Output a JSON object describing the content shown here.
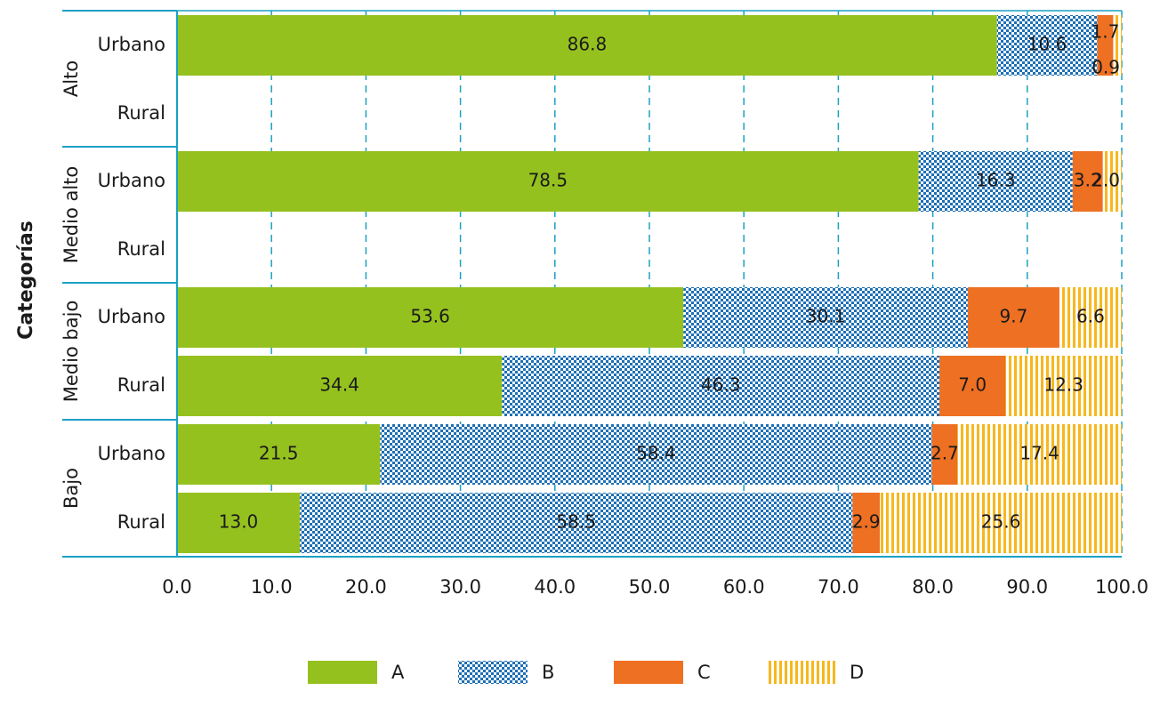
{
  "chart_data": {
    "type": "bar",
    "orientation": "horizontal",
    "stacked": true,
    "ylabel": "Categorías",
    "groups": [
      {
        "name": "Alto",
        "rows": [
          {
            "label": "Urbano",
            "values": [
              86.8,
              10.6,
              1.7,
              0.9
            ]
          },
          {
            "label": "Rural",
            "values": null
          }
        ]
      },
      {
        "name": "Medio alto",
        "rows": [
          {
            "label": "Urbano",
            "values": [
              78.5,
              16.3,
              3.2,
              2.0
            ]
          },
          {
            "label": "Rural",
            "values": null
          }
        ]
      },
      {
        "name": "Medio bajo",
        "rows": [
          {
            "label": "Urbano",
            "values": [
              53.6,
              30.1,
              9.7,
              6.6
            ]
          },
          {
            "label": "Rural",
            "values": [
              34.4,
              46.3,
              7.0,
              12.3
            ]
          }
        ]
      },
      {
        "name": "Bajo",
        "rows": [
          {
            "label": "Urbano",
            "values": [
              21.5,
              58.4,
              2.7,
              17.4
            ]
          },
          {
            "label": "Rural",
            "values": [
              13.0,
              58.5,
              2.9,
              25.6
            ]
          }
        ]
      }
    ],
    "series": [
      {
        "name": "A",
        "color": "#95c11f",
        "pattern": "solid"
      },
      {
        "name": "B",
        "color": "#1e6fb4",
        "pattern": "checker"
      },
      {
        "name": "C",
        "color": "#ee7023",
        "pattern": "solid"
      },
      {
        "name": "D",
        "color": "#f7b71d",
        "pattern": "vertical-stripes"
      }
    ],
    "xlim": [
      0,
      100
    ],
    "xticks": [
      "0.0",
      "10.0",
      "20.0",
      "30.0",
      "40.0",
      "50.0",
      "60.0",
      "70.0",
      "80.0",
      "90.0",
      "100.0"
    ],
    "grid": "vertical dashed",
    "axis_color": "#1ba1c4",
    "legend_position": "bottom"
  }
}
